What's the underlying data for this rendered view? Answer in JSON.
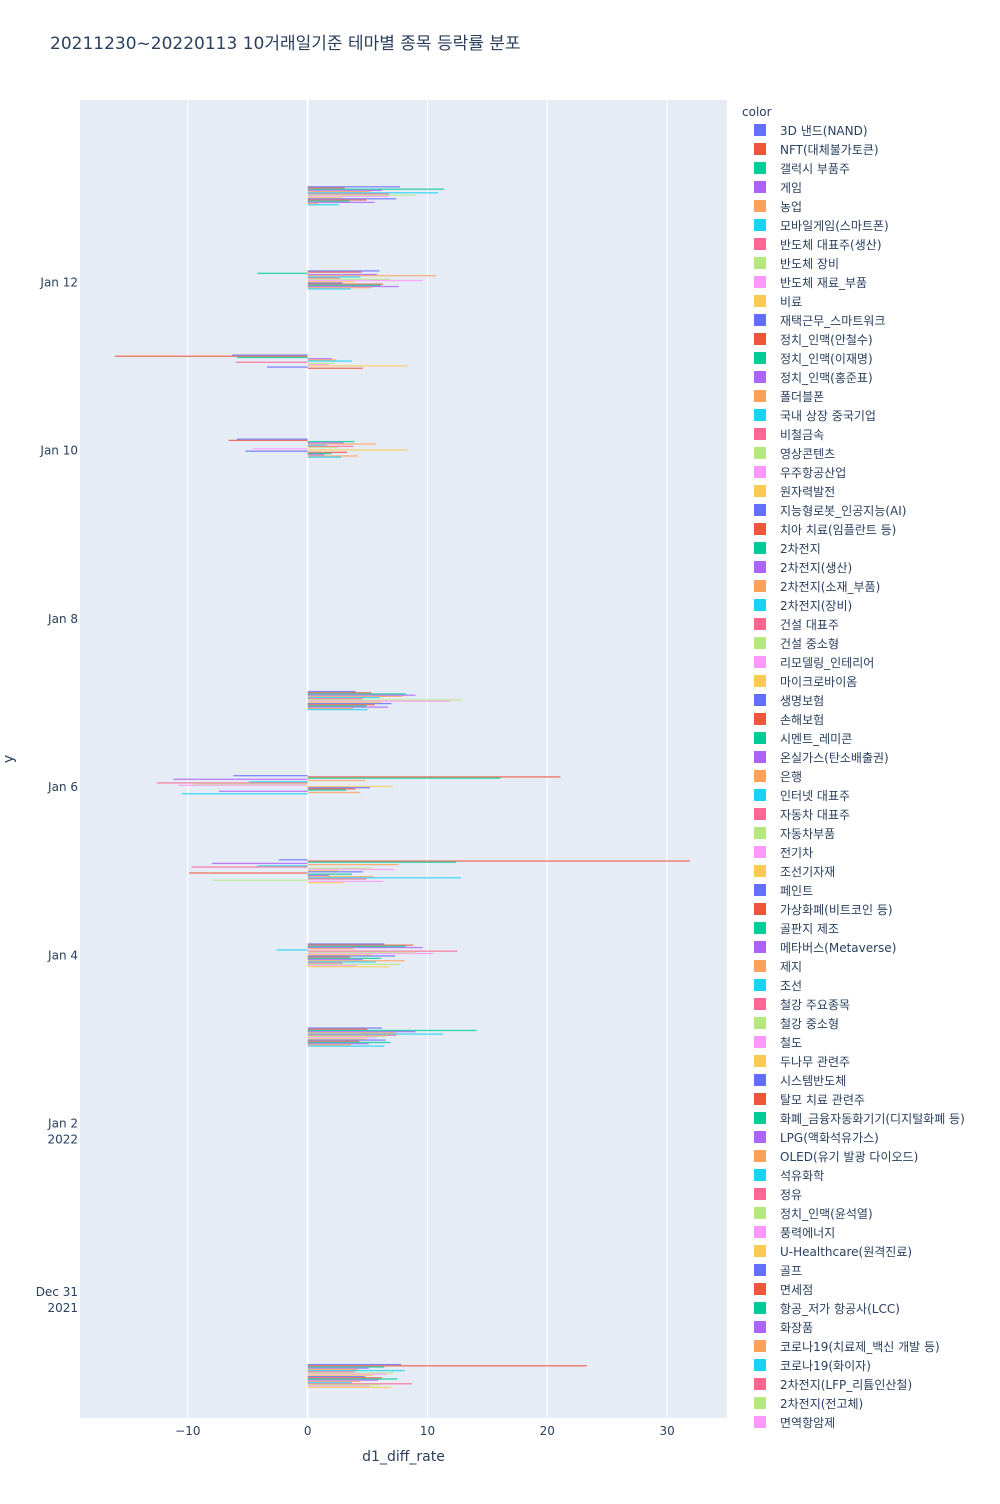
{
  "chart_data": {
    "type": "bar",
    "orientation": "horizontal",
    "title": "20211230~20220113 10거래일기준 테마별 종목 등락률 분포",
    "xlabel": "d1_diff_rate",
    "ylabel": "y",
    "xlim": [
      -19,
      35
    ],
    "ylim_dates": [
      "2021-12-29T12:00:00",
      "2022-01-14T04:00:00"
    ],
    "x_ticks": [
      -10,
      0,
      10,
      20,
      30
    ],
    "x_tick_labels": [
      "−10",
      "0",
      "10",
      "20",
      "30"
    ],
    "y_ticks": [
      {
        "date": "2021-12-31",
        "label1": "Dec 31",
        "label2": "2021"
      },
      {
        "date": "2022-01-02",
        "label1": "Jan 2",
        "label2": "2022"
      },
      {
        "date": "2022-01-04",
        "label1": "Jan 4",
        "label2": ""
      },
      {
        "date": "2022-01-06",
        "label1": "Jan 6",
        "label2": ""
      },
      {
        "date": "2022-01-08",
        "label1": "Jan 8",
        "label2": ""
      },
      {
        "date": "2022-01-10",
        "label1": "Jan 10",
        "label2": ""
      },
      {
        "date": "2022-01-12",
        "label1": "Jan 12",
        "label2": ""
      }
    ],
    "grid": true,
    "legend_title": "color",
    "legend_position": "right",
    "palette": [
      "#636efa",
      "#EF553B",
      "#00cc96",
      "#ab63fa",
      "#FFA15A",
      "#19d3f3",
      "#FF6692",
      "#B6E880",
      "#FF97FF",
      "#FECB52"
    ],
    "legend": [
      "3D 낸드(NAND)",
      "NFT(대체불가토큰)",
      "갤럭시 부품주",
      "게임",
      "농업",
      "모바일게임(스마트폰)",
      "반도체 대표주(생산)",
      "반도체 장비",
      "반도체 재료_부품",
      "비료",
      "재택근무_스마트워크",
      "정치_인맥(안철수)",
      "정치_인맥(이재명)",
      "정치_인맥(홍준표)",
      "폴더블폰",
      "국내 상장 중국기업",
      "비철금속",
      "영상콘텐츠",
      "우주항공산업",
      "원자력발전",
      "지능형로봇_인공지능(AI)",
      "치아 치료(임플란트 등)",
      "2차전지",
      "2차전지(생산)",
      "2차전지(소재_부품)",
      "2차전지(장비)",
      "건설 대표주",
      "건설 중소형",
      "리모델링_인테리어",
      "마이크로바이옴",
      "생명보험",
      "손해보험",
      "시멘트_레미콘",
      "온실가스(탄소배출권)",
      "은행",
      "인터넷 대표주",
      "자동차 대표주",
      "자동차부품",
      "전기차",
      "조선기자재",
      "페인트",
      "가상화폐(비트코인 등)",
      "골판지 제조",
      "메타버스(Metaverse)",
      "제지",
      "조선",
      "철강 주요종목",
      "철강 중소형",
      "철도",
      "두나무 관련주",
      "시스템반도체",
      "탈모 치료 관련주",
      "화폐_금융자동화기기(디지털화폐 등)",
      "LPG(액화석유가스)",
      "OLED(유기 발광 다이오드)",
      "석유화학",
      "정유",
      "정치_인맥(윤석열)",
      "풍력에너지",
      "U-Healthcare(원격진료)",
      "골프",
      "면세점",
      "항공_저가 항공사(LCC)",
      "화장품",
      "코로나19(치료제_백신 개발 등)",
      "코로나19(화이자)",
      "2차전지(LFP_리튬인산철)",
      "2차전지(전고체)",
      "면역항암제"
    ],
    "series": [
      {
        "date": "2021-12-30",
        "bars": [
          {
            "t": 0,
            "v": 7.8
          },
          {
            "t": 1,
            "v": 23.3
          },
          {
            "t": 2,
            "v": 6.4
          },
          {
            "t": 3,
            "v": 5.1
          },
          {
            "t": 4,
            "v": 4.2
          },
          {
            "t": 5,
            "v": 8.1
          },
          {
            "t": 6,
            "v": 3.9
          },
          {
            "t": 7,
            "v": 7.2
          },
          {
            "t": 8,
            "v": 6.6
          },
          {
            "t": 9,
            "v": 5.5
          },
          {
            "t": 10,
            "v": 4.8
          },
          {
            "t": 11,
            "v": 6.2
          },
          {
            "t": 12,
            "v": 7.5
          },
          {
            "t": 13,
            "v": 5.9
          },
          {
            "t": 14,
            "v": 4.4
          },
          {
            "t": 15,
            "v": 3.7
          },
          {
            "t": 16,
            "v": 8.7
          },
          {
            "t": 17,
            "v": 6.0
          },
          {
            "t": 18,
            "v": 5.2
          },
          {
            "t": 19,
            "v": 7.0
          }
        ]
      },
      {
        "date": "2022-01-03",
        "bars": [
          {
            "t": 0,
            "v": 6.2
          },
          {
            "t": 1,
            "v": 5.0
          },
          {
            "t": 2,
            "v": 14.1
          },
          {
            "t": 3,
            "v": 9.0
          },
          {
            "t": 4,
            "v": 7.4
          },
          {
            "t": 5,
            "v": 11.3
          },
          {
            "t": 6,
            "v": 7.4
          },
          {
            "t": 7,
            "v": 6.6
          },
          {
            "t": 8,
            "v": 5.8
          },
          {
            "t": 9,
            "v": 4.9
          },
          {
            "t": 10,
            "v": 6.5
          },
          {
            "t": 11,
            "v": 4.3
          },
          {
            "t": 12,
            "v": 6.9
          },
          {
            "t": 13,
            "v": 5.1
          },
          {
            "t": 14,
            "v": 3.6
          },
          {
            "t": 15,
            "v": 6.4
          }
        ]
      },
      {
        "date": "2022-01-04",
        "bars": [
          {
            "t": 0,
            "v": 6.4
          },
          {
            "t": 1,
            "v": 8.8
          },
          {
            "t": 2,
            "v": 8.2
          },
          {
            "t": 3,
            "v": 9.6
          },
          {
            "t": 4,
            "v": 3.9
          },
          {
            "t": 5,
            "v": -2.6
          },
          {
            "t": 6,
            "v": 12.5
          },
          {
            "t": 7,
            "v": 9.0
          },
          {
            "t": 8,
            "v": 10.5
          },
          {
            "t": 9,
            "v": 5.4
          },
          {
            "t": 10,
            "v": 7.3
          },
          {
            "t": 11,
            "v": 3.5
          },
          {
            "t": 12,
            "v": 6.1
          },
          {
            "t": 13,
            "v": 4.6
          },
          {
            "t": 14,
            "v": 8.1
          },
          {
            "t": 15,
            "v": 5.7
          },
          {
            "t": 16,
            "v": 2.9
          },
          {
            "t": 17,
            "v": 7.7
          },
          {
            "t": 18,
            "v": 4.1
          },
          {
            "t": 19,
            "v": 6.8
          }
        ]
      },
      {
        "date": "2022-01-05",
        "bars": [
          {
            "t": 0,
            "v": -2.4
          },
          {
            "t": 1,
            "v": 31.9
          },
          {
            "t": 2,
            "v": 12.4
          },
          {
            "t": 3,
            "v": -8.0
          },
          {
            "t": 4,
            "v": 7.6
          },
          {
            "t": 5,
            "v": -4.2
          },
          {
            "t": 6,
            "v": -9.7
          },
          {
            "t": 7,
            "v": 5.3
          },
          {
            "t": 8,
            "v": 7.2
          },
          {
            "t": 9,
            "v": 2.6
          },
          {
            "t": 10,
            "v": 4.6
          },
          {
            "t": 11,
            "v": -9.9
          },
          {
            "t": 12,
            "v": 3.7
          },
          {
            "t": 13,
            "v": 1.8
          },
          {
            "t": 14,
            "v": 5.5
          },
          {
            "t": 15,
            "v": 12.8
          },
          {
            "t": 16,
            "v": 4.9
          },
          {
            "t": 17,
            "v": -7.9
          },
          {
            "t": 18,
            "v": 6.3
          },
          {
            "t": 19,
            "v": 3.1
          }
        ]
      },
      {
        "date": "2022-01-06",
        "bars": [
          {
            "t": 0,
            "v": -6.2
          },
          {
            "t": 1,
            "v": 21.1
          },
          {
            "t": 2,
            "v": 16.1
          },
          {
            "t": 3,
            "v": -11.2
          },
          {
            "t": 4,
            "v": 4.8
          },
          {
            "t": 5,
            "v": -4.9
          },
          {
            "t": 6,
            "v": -12.6
          },
          {
            "t": 7,
            "v": -9.5
          },
          {
            "t": 8,
            "v": -10.8
          },
          {
            "t": 9,
            "v": 7.1
          },
          {
            "t": 10,
            "v": 5.2
          },
          {
            "t": 11,
            "v": 4.0
          },
          {
            "t": 12,
            "v": 3.2
          },
          {
            "t": 13,
            "v": -7.4
          },
          {
            "t": 14,
            "v": 4.4
          },
          {
            "t": 15,
            "v": -10.5
          }
        ]
      },
      {
        "date": "2022-01-07",
        "bars": [
          {
            "t": 0,
            "v": 4.0
          },
          {
            "t": 1,
            "v": 5.3
          },
          {
            "t": 2,
            "v": 8.2
          },
          {
            "t": 3,
            "v": 9.0
          },
          {
            "t": 4,
            "v": 7.9
          },
          {
            "t": 5,
            "v": 6.0
          },
          {
            "t": 6,
            "v": 4.6
          },
          {
            "t": 7,
            "v": 12.9
          },
          {
            "t": 8,
            "v": 11.9
          },
          {
            "t": 9,
            "v": 6.2
          },
          {
            "t": 10,
            "v": 7.0
          },
          {
            "t": 11,
            "v": 5.6
          },
          {
            "t": 12,
            "v": 4.9
          },
          {
            "t": 13,
            "v": 6.7
          },
          {
            "t": 14,
            "v": 3.8
          },
          {
            "t": 15,
            "v": 5.0
          }
        ]
      },
      {
        "date": "2022-01-10",
        "bars": [
          {
            "t": 0,
            "v": -5.9
          },
          {
            "t": 1,
            "v": -6.6
          },
          {
            "t": 2,
            "v": 3.9
          },
          {
            "t": 3,
            "v": 3.0
          },
          {
            "t": 4,
            "v": 5.7
          },
          {
            "t": 5,
            "v": 1.6
          },
          {
            "t": 6,
            "v": 3.8
          },
          {
            "t": 7,
            "v": 2.5
          },
          {
            "t": 8,
            "v": -4.6
          },
          {
            "t": 9,
            "v": 8.3
          },
          {
            "t": 10,
            "v": -5.2
          },
          {
            "t": 11,
            "v": 3.3
          },
          {
            "t": 12,
            "v": 2.0
          },
          {
            "t": 13,
            "v": 1.4
          },
          {
            "t": 14,
            "v": 4.2
          },
          {
            "t": 15,
            "v": 2.8
          }
        ]
      },
      {
        "date": "2022-01-11",
        "bars": [
          {
            "t": 0,
            "v": -6.3
          },
          {
            "t": 1,
            "v": -16.1
          },
          {
            "t": 2,
            "v": -5.9
          },
          {
            "t": 3,
            "v": 2.0
          },
          {
            "t": 4,
            "v": 2.4
          },
          {
            "t": 5,
            "v": 3.7
          },
          {
            "t": 6,
            "v": -6.0
          },
          {
            "t": 7,
            "v": 2.2
          },
          {
            "t": 8,
            "v": 1.8
          },
          {
            "t": 9,
            "v": 8.3
          },
          {
            "t": 10,
            "v": -3.4
          },
          {
            "t": 11,
            "v": 4.6
          }
        ]
      },
      {
        "date": "2022-01-12",
        "bars": [
          {
            "t": 0,
            "v": 6.0
          },
          {
            "t": 1,
            "v": 4.5
          },
          {
            "t": 2,
            "v": -4.2
          },
          {
            "t": 3,
            "v": 5.8
          },
          {
            "t": 4,
            "v": 10.7
          },
          {
            "t": 5,
            "v": 4.4
          },
          {
            "t": 6,
            "v": 2.7
          },
          {
            "t": 7,
            "v": 6.9
          },
          {
            "t": 8,
            "v": 9.6
          },
          {
            "t": 9,
            "v": 4.0
          },
          {
            "t": 10,
            "v": 2.9
          },
          {
            "t": 11,
            "v": 6.3
          },
          {
            "t": 12,
            "v": 6.1
          },
          {
            "t": 13,
            "v": 7.6
          },
          {
            "t": 14,
            "v": 5.3
          },
          {
            "t": 15,
            "v": 3.6
          }
        ]
      },
      {
        "date": "2022-01-13",
        "bars": [
          {
            "t": 0,
            "v": 7.7
          },
          {
            "t": 1,
            "v": 3.1
          },
          {
            "t": 2,
            "v": 11.4
          },
          {
            "t": 3,
            "v": 6.2
          },
          {
            "t": 4,
            "v": 5.3
          },
          {
            "t": 5,
            "v": 10.9
          },
          {
            "t": 6,
            "v": 6.8
          },
          {
            "t": 7,
            "v": 9.0
          },
          {
            "t": 8,
            "v": 6.8
          },
          {
            "t": 9,
            "v": 2.9
          },
          {
            "t": 10,
            "v": 7.4
          },
          {
            "t": 11,
            "v": 4.9
          },
          {
            "t": 12,
            "v": 3.5
          },
          {
            "t": 13,
            "v": 5.6
          },
          {
            "t": 14,
            "v": 0.9
          },
          {
            "t": 15,
            "v": 2.6
          }
        ]
      }
    ]
  }
}
